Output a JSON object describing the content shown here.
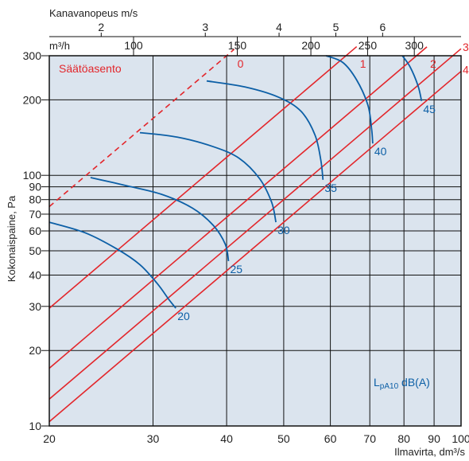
{
  "chart_data": {
    "type": "line",
    "x_scale": "log",
    "y_scale": "log",
    "xlabel": "Ilmavirta, dm³/s",
    "ylabel": "Kokonaispaine, Pa",
    "top_axis_title": "Kanavanopeus m/s",
    "m3h_axis_label": "m³/h",
    "xlim": [
      20,
      100
    ],
    "ylim": [
      10,
      300
    ],
    "grid": true,
    "x_ticks": [
      20,
      30,
      40,
      50,
      60,
      70,
      80,
      90,
      100
    ],
    "y_ticks": [
      10,
      20,
      30,
      40,
      50,
      60,
      70,
      80,
      90,
      100,
      200,
      300
    ],
    "velocity_ticks": [
      {
        "label": "2",
        "x": 24.5
      },
      {
        "label": "3",
        "x": 36.8
      },
      {
        "label": "4",
        "x": 49.1
      },
      {
        "label": "5",
        "x": 61.3
      },
      {
        "label": "6",
        "x": 73.6
      }
    ],
    "m3h_ticks": [
      {
        "label": "100",
        "x": 27.8
      },
      {
        "label": "150",
        "x": 41.7
      },
      {
        "label": "200",
        "x": 55.6
      },
      {
        "label": "250",
        "x": 69.4
      },
      {
        "label": "300",
        "x": 83.3
      }
    ],
    "setting_title": "Säätöasento",
    "setting_lines": [
      {
        "label": "0",
        "p20": 75,
        "x_end": 41.2,
        "dashed": true
      },
      {
        "label": "1",
        "p20": 29.5,
        "x_end": 66.5,
        "dashed": false
      },
      {
        "label": "2",
        "p20": 17,
        "x_end": 87.5,
        "dashed": false
      },
      {
        "label": "3",
        "p20": 12.8,
        "x_end": 100,
        "dashed": false
      },
      {
        "label": "4",
        "p20": 10.4,
        "x_end": 100,
        "dashed": false
      }
    ],
    "sound_title_prefix": "L",
    "sound_title_sub": "pA10",
    "sound_title_suffix": " dB(A)",
    "sound_curves": [
      {
        "label": "20",
        "points": [
          [
            20,
            65
          ],
          [
            23,
            59
          ],
          [
            26,
            51
          ],
          [
            28.5,
            44
          ],
          [
            30.5,
            37
          ],
          [
            31.9,
            32
          ],
          [
            32.8,
            29.5
          ]
        ]
      },
      {
        "label": "25",
        "points": [
          [
            23.5,
            98
          ],
          [
            27,
            91
          ],
          [
            31,
            84
          ],
          [
            35,
            74
          ],
          [
            38,
            63
          ],
          [
            39.8,
            53
          ],
          [
            40.3,
            45.5
          ]
        ]
      },
      {
        "label": "30",
        "points": [
          [
            28.5,
            148
          ],
          [
            33,
            142
          ],
          [
            38,
            130
          ],
          [
            42,
            117
          ],
          [
            45.5,
            97
          ],
          [
            47.7,
            78
          ],
          [
            48.5,
            65
          ]
        ]
      },
      {
        "label": "35",
        "points": [
          [
            37,
            238
          ],
          [
            43,
            225
          ],
          [
            49,
            205
          ],
          [
            53.5,
            180
          ],
          [
            56.5,
            145
          ],
          [
            57.8,
            115
          ],
          [
            58.3,
            96
          ]
        ]
      },
      {
        "label": "40",
        "points": [
          [
            59,
            300
          ],
          [
            63,
            282
          ],
          [
            66.5,
            240
          ],
          [
            69.5,
            190
          ],
          [
            70.5,
            153
          ],
          [
            70.8,
            134
          ]
        ]
      },
      {
        "label": "45",
        "points": [
          [
            79.5,
            300
          ],
          [
            82,
            270
          ],
          [
            84.5,
            228
          ],
          [
            85.7,
            198
          ]
        ]
      }
    ]
  }
}
